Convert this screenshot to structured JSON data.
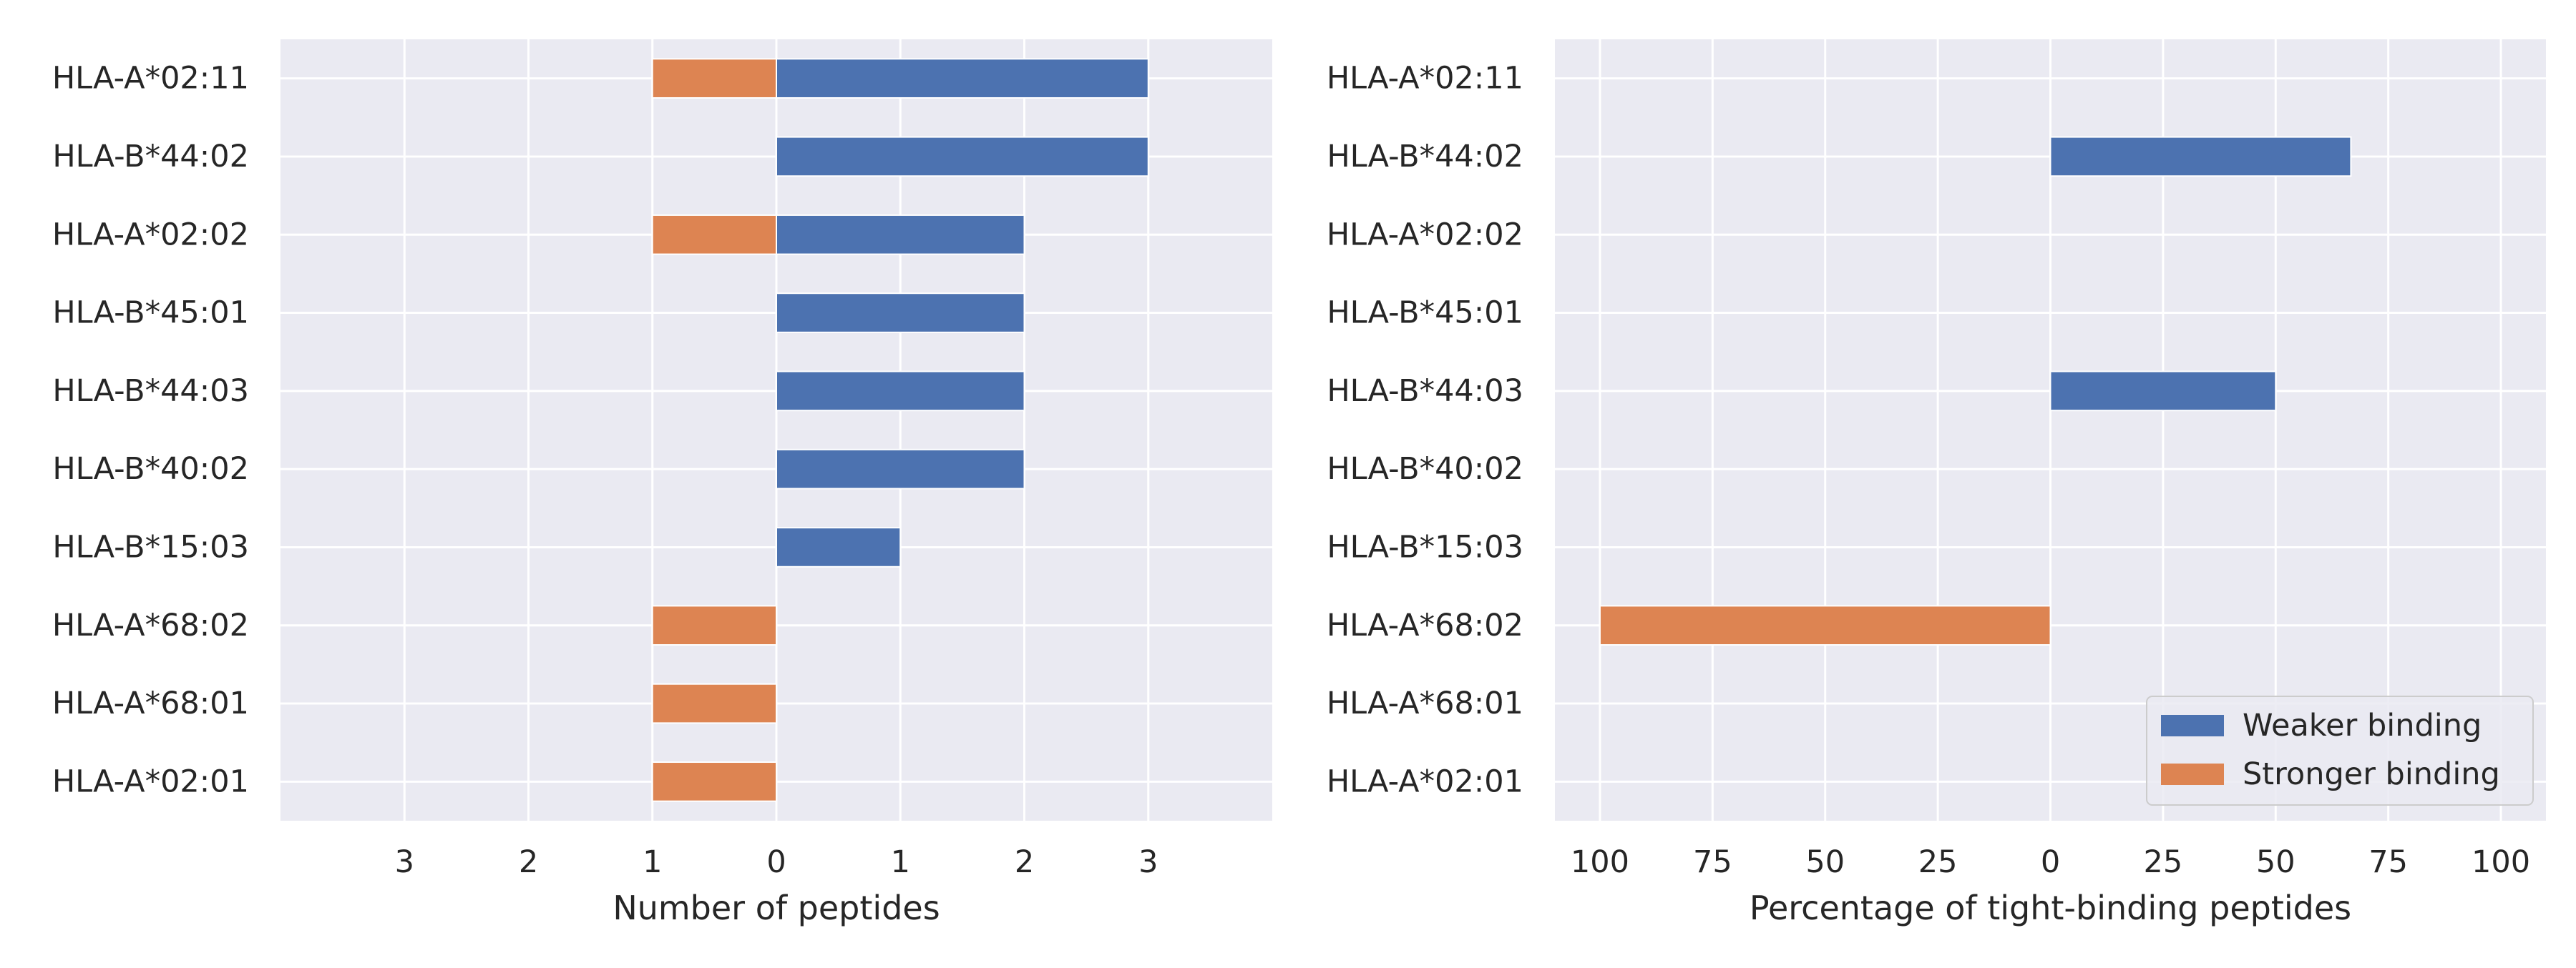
{
  "colors": {
    "weaker": "#4c72b0",
    "stronger": "#dd8452",
    "panel_bg": "#eaeaf2",
    "grid": "#ffffff",
    "text": "#262626"
  },
  "chart_data": [
    {
      "type": "bar",
      "orientation": "horizontal",
      "diverging": true,
      "title": "",
      "xlabel": "Number of peptides",
      "ylabel": "",
      "categories": [
        "HLA-A*02:11",
        "HLA-B*44:02",
        "HLA-A*02:02",
        "HLA-B*45:01",
        "HLA-B*44:03",
        "HLA-B*40:02",
        "HLA-B*15:03",
        "HLA-A*68:02",
        "HLA-A*68:01",
        "HLA-A*02:01"
      ],
      "series": [
        {
          "name": "Weaker binding",
          "direction": "right",
          "color": "#4c72b0",
          "values": [
            3,
            3,
            2,
            2,
            2,
            2,
            1,
            0,
            0,
            0
          ]
        },
        {
          "name": "Stronger binding",
          "direction": "left",
          "color": "#dd8452",
          "values": [
            1,
            0,
            1,
            0,
            0,
            0,
            0,
            1,
            1,
            1
          ]
        }
      ],
      "xlim": [
        -4,
        4
      ],
      "xticks": [
        -3,
        -2,
        -1,
        0,
        1,
        2,
        3
      ],
      "xtick_labels": [
        "3",
        "2",
        "1",
        "0",
        "1",
        "2",
        "3"
      ],
      "grid": true,
      "legend": null
    },
    {
      "type": "bar",
      "orientation": "horizontal",
      "diverging": true,
      "title": "",
      "xlabel": "Percentage of tight-binding peptides",
      "ylabel": "",
      "categories": [
        "HLA-A*02:11",
        "HLA-B*44:02",
        "HLA-A*02:02",
        "HLA-B*45:01",
        "HLA-B*44:03",
        "HLA-B*40:02",
        "HLA-B*15:03",
        "HLA-A*68:02",
        "HLA-A*68:01",
        "HLA-A*02:01"
      ],
      "series": [
        {
          "name": "Weaker binding",
          "direction": "right",
          "color": "#4c72b0",
          "values": [
            0,
            66.7,
            0,
            0,
            50,
            0,
            0,
            0,
            0,
            0
          ]
        },
        {
          "name": "Stronger binding",
          "direction": "left",
          "color": "#dd8452",
          "values": [
            0,
            0,
            0,
            0,
            0,
            0,
            0,
            100,
            0,
            0
          ]
        }
      ],
      "xlim": [
        -110,
        110
      ],
      "xticks": [
        -100,
        -75,
        -50,
        -25,
        0,
        25,
        50,
        75,
        100
      ],
      "xtick_labels": [
        "100",
        "75",
        "50",
        "25",
        "0",
        "25",
        "50",
        "75",
        "100"
      ],
      "grid": true,
      "legend": {
        "placement": "lower-right",
        "entries": [
          {
            "label": "Weaker binding",
            "color": "#4c72b0"
          },
          {
            "label": "Stronger binding",
            "color": "#dd8452"
          }
        ]
      }
    }
  ]
}
